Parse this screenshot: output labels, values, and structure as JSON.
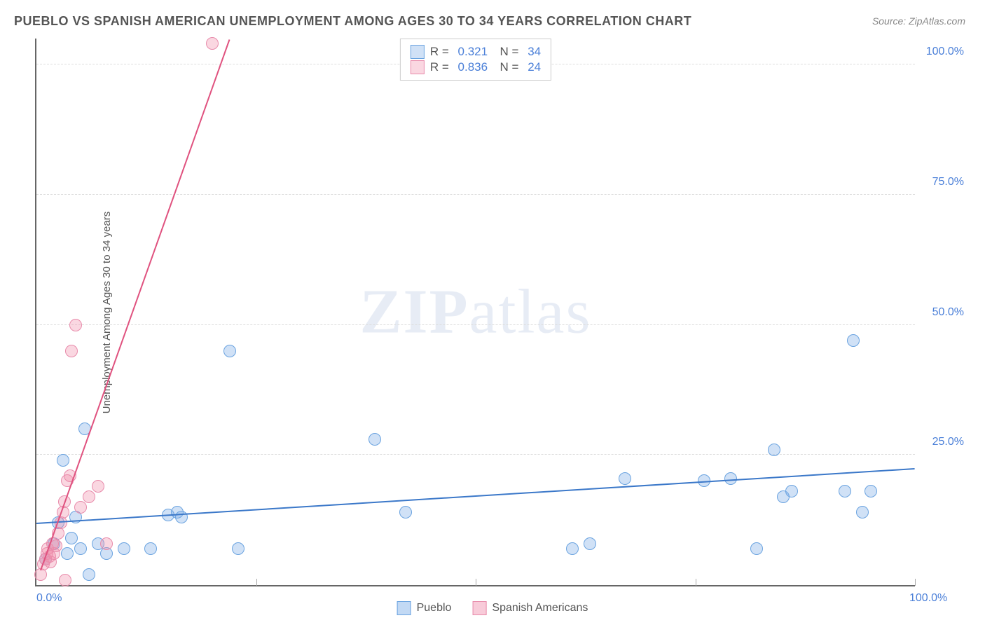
{
  "title": "PUEBLO VS SPANISH AMERICAN UNEMPLOYMENT AMONG AGES 30 TO 34 YEARS CORRELATION CHART",
  "source": "Source: ZipAtlas.com",
  "y_axis_label": "Unemployment Among Ages 30 to 34 years",
  "watermark_bold": "ZIP",
  "watermark_rest": "atlas",
  "chart": {
    "type": "scatter",
    "xlim": [
      0,
      100
    ],
    "ylim": [
      0,
      105
    ],
    "x_ticks": [
      0,
      100
    ],
    "x_tick_labels": [
      "0.0%",
      "100.0%"
    ],
    "y_ticks": [
      25,
      50,
      75,
      100
    ],
    "y_tick_labels": [
      "25.0%",
      "50.0%",
      "75.0%",
      "100.0%"
    ],
    "grid_color": "#dddddd",
    "background_color": "#ffffff",
    "axis_color": "#666666",
    "series": [
      {
        "name": "Pueblo",
        "key": "pueblo",
        "fill": "rgba(120,170,230,0.35)",
        "stroke": "#6aa3e0",
        "line_color": "#3b78c9",
        "marker_radius": 9,
        "R": "0.321",
        "N": "34",
        "regression": {
          "x1": 0,
          "y1": 12,
          "x2": 100,
          "y2": 22.5
        },
        "points": [
          {
            "x": 1,
            "y": 5
          },
          {
            "x": 2,
            "y": 8
          },
          {
            "x": 2.5,
            "y": 12
          },
          {
            "x": 3,
            "y": 24
          },
          {
            "x": 3.5,
            "y": 6
          },
          {
            "x": 4,
            "y": 9
          },
          {
            "x": 4.5,
            "y": 13
          },
          {
            "x": 5,
            "y": 7
          },
          {
            "x": 5.5,
            "y": 30
          },
          {
            "x": 6,
            "y": 2
          },
          {
            "x": 7,
            "y": 8
          },
          {
            "x": 8,
            "y": 6
          },
          {
            "x": 10,
            "y": 7
          },
          {
            "x": 13,
            "y": 7
          },
          {
            "x": 15,
            "y": 13.5
          },
          {
            "x": 16,
            "y": 14
          },
          {
            "x": 16.5,
            "y": 13
          },
          {
            "x": 22,
            "y": 45
          },
          {
            "x": 23,
            "y": 7
          },
          {
            "x": 38.5,
            "y": 28
          },
          {
            "x": 42,
            "y": 14
          },
          {
            "x": 61,
            "y": 7
          },
          {
            "x": 63,
            "y": 8
          },
          {
            "x": 67,
            "y": 20.5
          },
          {
            "x": 76,
            "y": 20
          },
          {
            "x": 79,
            "y": 20.5
          },
          {
            "x": 82,
            "y": 7
          },
          {
            "x": 84,
            "y": 26
          },
          {
            "x": 85,
            "y": 17
          },
          {
            "x": 86,
            "y": 18
          },
          {
            "x": 92,
            "y": 18
          },
          {
            "x": 93,
            "y": 47
          },
          {
            "x": 94,
            "y": 14
          },
          {
            "x": 95,
            "y": 18
          }
        ]
      },
      {
        "name": "Spanish Americans",
        "key": "spanish",
        "fill": "rgba(240,140,170,0.35)",
        "stroke": "#e88bab",
        "line_color": "#e0527f",
        "marker_radius": 9,
        "R": "0.836",
        "N": "24",
        "regression": {
          "x1": 0.5,
          "y1": 3,
          "x2": 22,
          "y2": 105
        },
        "points": [
          {
            "x": 0.5,
            "y": 2
          },
          {
            "x": 0.8,
            "y": 4
          },
          {
            "x": 1,
            "y": 5
          },
          {
            "x": 1.2,
            "y": 6
          },
          {
            "x": 1.3,
            "y": 7
          },
          {
            "x": 1.5,
            "y": 5.5
          },
          {
            "x": 1.6,
            "y": 4.5
          },
          {
            "x": 1.8,
            "y": 8
          },
          {
            "x": 2,
            "y": 6
          },
          {
            "x": 2.2,
            "y": 7.5
          },
          {
            "x": 2.5,
            "y": 10
          },
          {
            "x": 2.8,
            "y": 12
          },
          {
            "x": 3,
            "y": 14
          },
          {
            "x": 3.2,
            "y": 16
          },
          {
            "x": 3.5,
            "y": 20
          },
          {
            "x": 3.8,
            "y": 21
          },
          {
            "x": 4,
            "y": 45
          },
          {
            "x": 4.5,
            "y": 50
          },
          {
            "x": 5,
            "y": 15
          },
          {
            "x": 6,
            "y": 17
          },
          {
            "x": 7,
            "y": 19
          },
          {
            "x": 8,
            "y": 8
          },
          {
            "x": 3.3,
            "y": 1
          },
          {
            "x": 20,
            "y": 104
          }
        ]
      }
    ]
  },
  "legend_bottom": [
    {
      "label": "Pueblo",
      "fill": "rgba(120,170,230,0.45)",
      "stroke": "#6aa3e0"
    },
    {
      "label": "Spanish Americans",
      "fill": "rgba(240,140,170,0.45)",
      "stroke": "#e88bab"
    }
  ]
}
